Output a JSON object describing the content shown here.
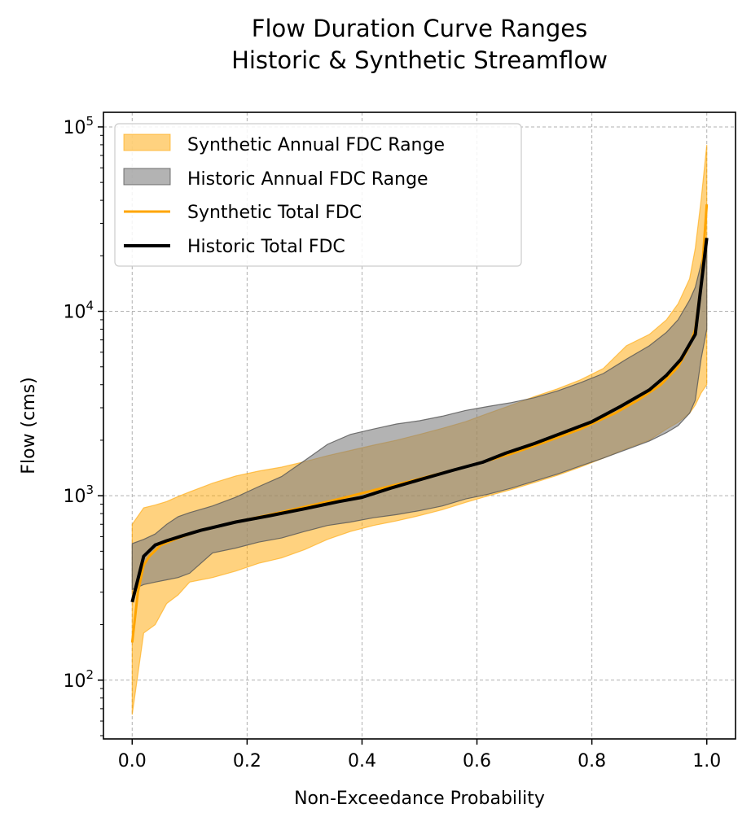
{
  "chart_data": {
    "type": "area",
    "title": "Flow Duration Curve Ranges",
    "subtitle": "Historic & Synthetic Streamflow",
    "xlabel": "Non-Exceedance Probability",
    "ylabel": "Flow (cms)",
    "xlim": [
      -0.05,
      1.05
    ],
    "ylim": [
      48,
      120000
    ],
    "yscale": "log",
    "grid": true,
    "legend_position": "top-left",
    "xticks": [
      {
        "value": 0.0,
        "label": "0.0"
      },
      {
        "value": 0.2,
        "label": "0.2"
      },
      {
        "value": 0.4,
        "label": "0.4"
      },
      {
        "value": 0.6,
        "label": "0.6"
      },
      {
        "value": 0.8,
        "label": "0.8"
      },
      {
        "value": 1.0,
        "label": "1.0"
      }
    ],
    "yticks": [
      {
        "value": 100,
        "base": "10",
        "exp": "2"
      },
      {
        "value": 1000,
        "base": "10",
        "exp": "3"
      },
      {
        "value": 10000,
        "base": "10",
        "exp": "4"
      },
      {
        "value": 100000,
        "base": "10",
        "exp": "5"
      }
    ],
    "colors": {
      "synthetic": "#FFA500",
      "historic": "#000000",
      "historic_band": "#808080",
      "grid": "#b0b0b0"
    },
    "series": [
      {
        "name": "Synthetic Annual FDC Range",
        "kind": "band",
        "x": [
          0.0,
          0.02,
          0.04,
          0.06,
          0.08,
          0.1,
          0.14,
          0.18,
          0.22,
          0.26,
          0.3,
          0.34,
          0.38,
          0.42,
          0.46,
          0.5,
          0.54,
          0.58,
          0.62,
          0.66,
          0.7,
          0.74,
          0.78,
          0.82,
          0.86,
          0.9,
          0.93,
          0.95,
          0.97,
          0.98,
          0.99,
          1.0
        ],
        "lower": [
          65,
          180,
          200,
          260,
          290,
          340,
          360,
          390,
          430,
          460,
          510,
          580,
          640,
          690,
          730,
          780,
          840,
          920,
          1000,
          1080,
          1180,
          1290,
          1430,
          1600,
          1800,
          2000,
          2300,
          2500,
          2800,
          3100,
          3600,
          4000
        ],
        "upper": [
          700,
          860,
          890,
          930,
          990,
          1050,
          1170,
          1280,
          1360,
          1430,
          1530,
          1650,
          1760,
          1880,
          2000,
          2150,
          2320,
          2520,
          2800,
          3100,
          3450,
          3800,
          4250,
          4900,
          6500,
          7500,
          9000,
          11000,
          15000,
          22000,
          40000,
          80000
        ]
      },
      {
        "name": "Historic Annual FDC Range",
        "kind": "band",
        "x": [
          0.0,
          0.02,
          0.04,
          0.06,
          0.08,
          0.1,
          0.14,
          0.18,
          0.22,
          0.26,
          0.3,
          0.34,
          0.38,
          0.42,
          0.46,
          0.5,
          0.54,
          0.58,
          0.62,
          0.66,
          0.7,
          0.74,
          0.78,
          0.82,
          0.86,
          0.9,
          0.93,
          0.95,
          0.97,
          0.98,
          0.99,
          1.0
        ],
        "lower": [
          310,
          330,
          340,
          350,
          360,
          380,
          490,
          520,
          560,
          590,
          640,
          690,
          720,
          760,
          790,
          830,
          880,
          960,
          1020,
          1100,
          1200,
          1310,
          1450,
          1600,
          1780,
          1980,
          2200,
          2400,
          2800,
          3300,
          5500,
          8000
        ],
        "upper": [
          550,
          580,
          620,
          700,
          770,
          810,
          880,
          980,
          1120,
          1270,
          1550,
          1900,
          2150,
          2300,
          2450,
          2550,
          2700,
          2900,
          3050,
          3200,
          3400,
          3700,
          4100,
          4600,
          5500,
          6500,
          7700,
          9000,
          11500,
          13500,
          18000,
          25000
        ]
      },
      {
        "name": "Synthetic Total FDC",
        "kind": "line",
        "x": [
          0.0,
          0.01,
          0.02,
          0.03,
          0.05,
          0.08,
          0.12,
          0.18,
          0.24,
          0.3,
          0.36,
          0.42,
          0.48,
          0.54,
          0.6,
          0.66,
          0.72,
          0.78,
          0.84,
          0.88,
          0.92,
          0.95,
          0.97,
          0.98,
          0.99,
          1.0
        ],
        "values": [
          160,
          300,
          420,
          470,
          540,
          590,
          650,
          720,
          790,
          870,
          960,
          1070,
          1190,
          1330,
          1490,
          1690,
          1960,
          2300,
          2800,
          3300,
          4000,
          5000,
          6500,
          8000,
          14000,
          38000
        ]
      },
      {
        "name": "Historic Total FDC",
        "kind": "line",
        "x": [
          0.0,
          0.02,
          0.04,
          0.06,
          0.09,
          0.12,
          0.18,
          0.24,
          0.3,
          0.36,
          0.4,
          0.45,
          0.5,
          0.56,
          0.61,
          0.65,
          0.7,
          0.75,
          0.8,
          0.85,
          0.9,
          0.93,
          0.955,
          0.98,
          1.0
        ],
        "values": [
          265,
          470,
          540,
          570,
          610,
          650,
          720,
          780,
          850,
          930,
          980,
          1100,
          1220,
          1380,
          1520,
          1700,
          1920,
          2200,
          2520,
          3050,
          3750,
          4500,
          5500,
          7500,
          25000
        ]
      }
    ]
  }
}
